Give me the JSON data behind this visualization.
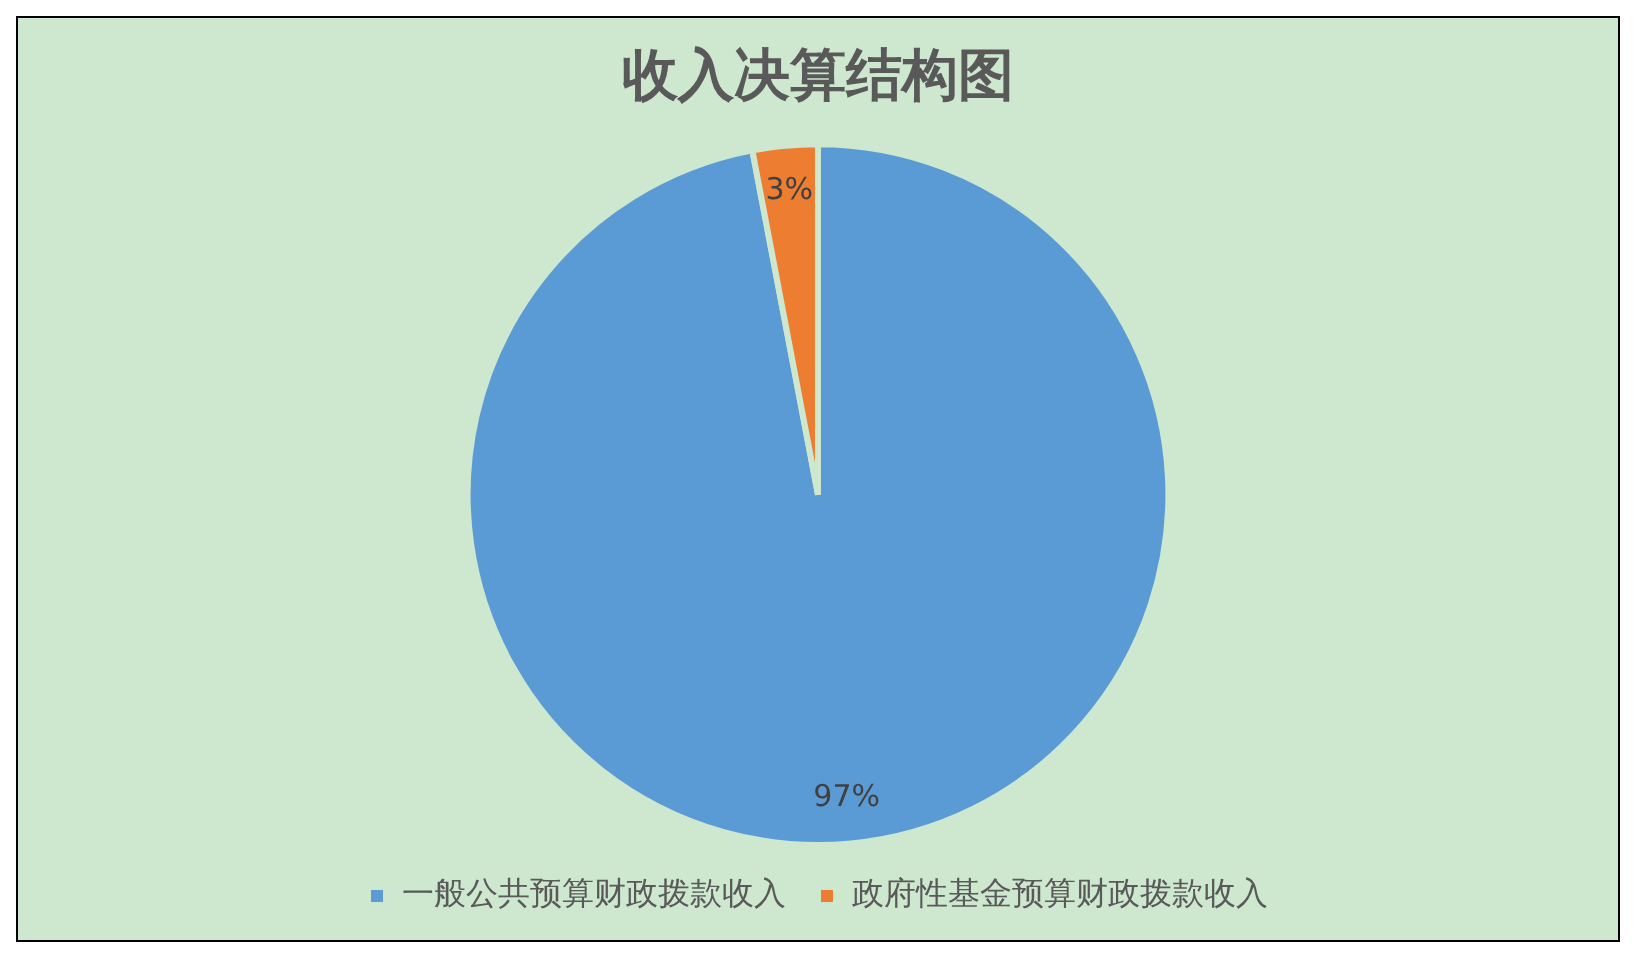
{
  "chart_data": {
    "type": "pie",
    "title": "收入决算结构图",
    "categories": [
      "一般公共预算财政拨款收入",
      "政府性基金预算财政拨款收入"
    ],
    "values": [
      97,
      3
    ],
    "colors": [
      "#5b9bd5",
      "#ed7d31"
    ],
    "value_labels": [
      "97%",
      "3%"
    ],
    "legend": "bottom"
  }
}
